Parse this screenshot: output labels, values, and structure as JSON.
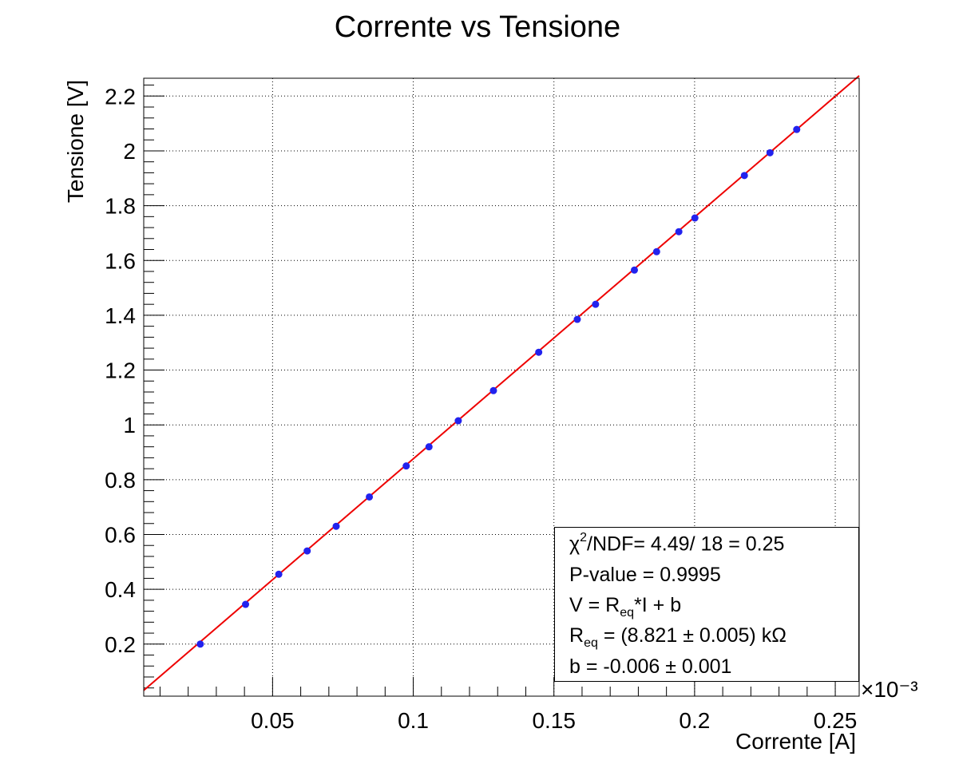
{
  "chart_data": {
    "type": "scatter",
    "title": "Corrente vs Tensione",
    "xlabel": "Corrente [A]",
    "ylabel": "Tensione [V]",
    "x_multiplier_label": "×10⁻³",
    "xlim": [
      0.0042,
      0.2585
    ],
    "ylim": [
      0.01,
      2.265
    ],
    "x_ticks": [
      0.05,
      0.1,
      0.15,
      0.2,
      0.25
    ],
    "x_tick_labels": [
      "0.05",
      "0.1",
      "0.15",
      "0.2",
      "0.25"
    ],
    "y_ticks": [
      0.2,
      0.4,
      0.6,
      0.8,
      1.0,
      1.2,
      1.4,
      1.6,
      1.8,
      2.0,
      2.2
    ],
    "y_tick_labels": [
      "0.2",
      "0.4",
      "0.6",
      "0.8",
      "1",
      "1.2",
      "1.4",
      "1.6",
      "1.8",
      "2",
      "2.2"
    ],
    "grid": true,
    "series": [
      {
        "color": "#2222ee",
        "points": [
          [
            0.0243,
            0.2
          ],
          [
            0.0404,
            0.345
          ],
          [
            0.0522,
            0.455
          ],
          [
            0.0623,
            0.54
          ],
          [
            0.0726,
            0.63
          ],
          [
            0.0844,
            0.737
          ],
          [
            0.0975,
            0.85
          ],
          [
            0.1056,
            0.92
          ],
          [
            0.116,
            1.015
          ],
          [
            0.1285,
            1.125
          ],
          [
            0.1446,
            1.265
          ],
          [
            0.1583,
            1.385
          ],
          [
            0.1648,
            1.44
          ],
          [
            0.1786,
            1.565
          ],
          [
            0.1865,
            1.632
          ],
          [
            0.1944,
            1.705
          ],
          [
            0.2001,
            1.755
          ],
          [
            0.2177,
            1.91
          ],
          [
            0.2268,
            1.993
          ],
          [
            0.2363,
            2.078
          ]
        ]
      }
    ],
    "fit": {
      "type": "line",
      "color": "#ee0000",
      "slope": 8.821,
      "intercept": -0.006,
      "x_range": [
        0.0042,
        0.2585
      ]
    },
    "stats_box": {
      "chi2": "4.49/ 18 = 0.25",
      "pvalue": "P-value = 0.9995",
      "model_rest": "*I + b",
      "req_value": "= (8.821 ± 0.005) kΩ",
      "b": "b = -0.006 ± 0.001"
    }
  }
}
